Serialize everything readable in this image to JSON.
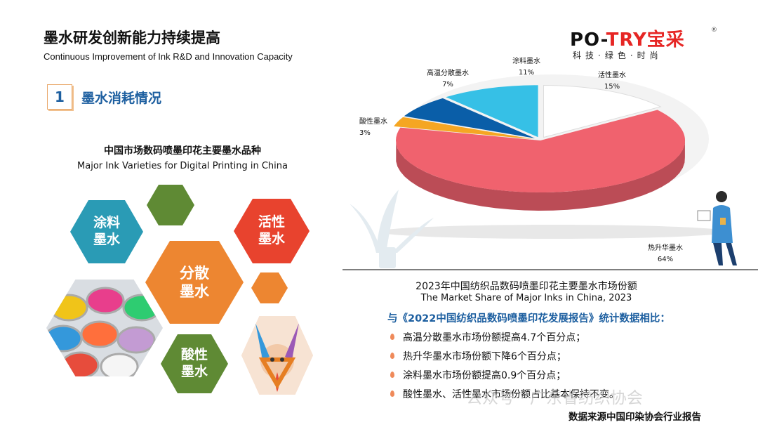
{
  "header": {
    "title_cn": "墨水研发创新能力持续提高",
    "title_en": "Continuous Improvement of Ink R&D and Innovation Capacity"
  },
  "logo": {
    "brand_left": "PO-",
    "brand_mid": "TRY",
    "brand_cn": "宝采",
    "reg_mark": "®",
    "tagline": "科技·绿色·时尚"
  },
  "section": {
    "number": "1",
    "label": "墨水消耗情况"
  },
  "left_panel": {
    "title_cn": "中国市场数码喷墨印花主要墨水品种",
    "title_en": "Major Ink Varieties for Digital Printing in China",
    "hexagons": [
      {
        "label": "涂料\n墨水",
        "color": "#2a9bb5"
      },
      {
        "label": "活性\n墨水",
        "color": "#e8432e"
      },
      {
        "label": "分散\n墨水",
        "color": "#ed8631"
      },
      {
        "label": "酸性\n墨水",
        "color": "#5f8a34"
      }
    ],
    "colors": {
      "decor_green": "#5f8a34",
      "decor_orange": "#ed8631"
    }
  },
  "chart_data": {
    "type": "pie",
    "title": "2023年中国纺织品数码喷墨印花主要墨水市场份额",
    "subtitle": "The Market Share of Major Inks in China, 2023",
    "categories": [
      "热升华墨水",
      "酸性墨水",
      "高温分散墨水",
      "涂料墨水",
      "活性墨水"
    ],
    "values": [
      64,
      3,
      7,
      11,
      15
    ],
    "value_labels": [
      "64%",
      "3%",
      "7%",
      "11%",
      "15%"
    ],
    "colors": [
      "#f0626e",
      "#f5a623",
      "#0a5ea8",
      "#36c0e6",
      "#ffffff"
    ],
    "style": "3d-exploded"
  },
  "comparison": {
    "heading": "与《2022中国纺织品数码喷墨印花发展报告》统计数据相比：",
    "bullets": [
      "高温分散墨水市场份额提高4.7个百分点；",
      "热升华墨水市场份额下降6个百分点；",
      "涂料墨水市场份额提高0.9个百分点；",
      "酸性墨水、活性墨水市场份额占比基本保持不变。"
    ]
  },
  "watermark": "公众号 · 广东省纺织协会",
  "source": "数据来源中国印染协会行业报告"
}
